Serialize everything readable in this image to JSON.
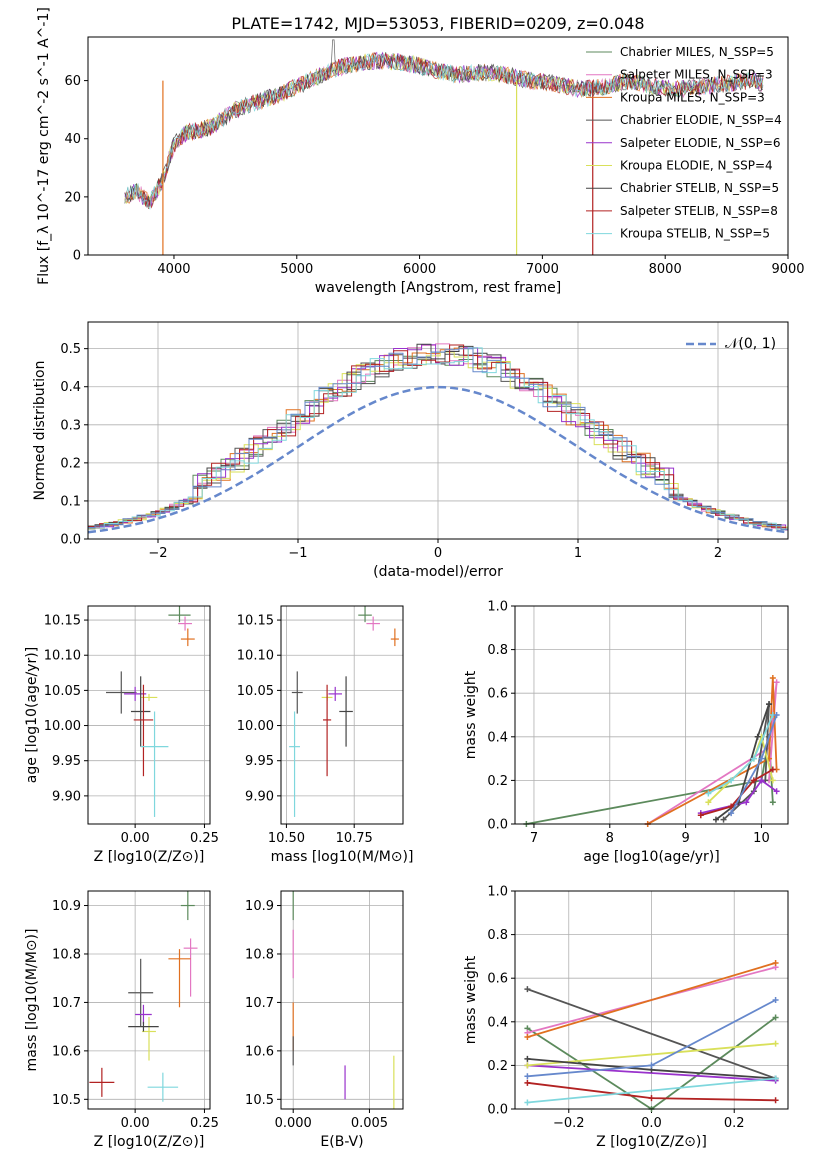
{
  "page_title": "PLATE=1742, MJD=53053, FIBERID=0209, z=0.048",
  "series_colors": [
    "#5c8a5c",
    "#e377c2",
    "#e07020",
    "#555555",
    "#9932cc",
    "#d9e05a",
    "#444444",
    "#b22222",
    "#7fd7dd"
  ],
  "series_colors_lines": [
    "#5c8a5c",
    "#e377c2",
    "#e07020",
    "#555555",
    "#9932cc",
    "#d9e05a",
    "#444444",
    "#b22222",
    "#7fd7dd",
    "#6688cc"
  ],
  "chart_data": [
    {
      "type": "line",
      "xlabel": "wavelength [Angstrom, rest frame]",
      "ylabel": "Flux [f_λ 10^-17 erg cm^-2 s^-1 A^-1]",
      "xlim": [
        3300,
        9000
      ],
      "ylim": [
        0,
        75
      ],
      "xticks": [
        "4000",
        "5000",
        "6000",
        "7000",
        "8000",
        "9000"
      ],
      "yticks": [
        "0",
        "20",
        "40",
        "60"
      ],
      "legend": [
        "Chabrier MILES, N_SSP=5",
        "Salpeter MILES, N_SSP=3",
        "Kroupa MILES, N_SSP=3",
        "Chabrier ELODIE, N_SSP=4",
        "Salpeter ELODIE, N_SSP=6",
        "Kroupa ELODIE, N_SSP=4",
        "Chabrier STELIB, N_SSP=5",
        "Salpeter STELIB, N_SSP=8",
        "Kroupa STELIB, N_SSP=5"
      ],
      "legend_placement": "top-right",
      "spectrum_anchor_points": [
        [
          3600,
          20
        ],
        [
          3700,
          22
        ],
        [
          3800,
          18
        ],
        [
          3900,
          25
        ],
        [
          4000,
          38
        ],
        [
          4100,
          42
        ],
        [
          4300,
          44
        ],
        [
          4500,
          50
        ],
        [
          4700,
          53
        ],
        [
          4900,
          56
        ],
        [
          5100,
          60
        ],
        [
          5300,
          64
        ],
        [
          5500,
          66
        ],
        [
          5700,
          67
        ],
        [
          5900,
          66
        ],
        [
          6100,
          64
        ],
        [
          6300,
          62
        ],
        [
          6500,
          63
        ],
        [
          6700,
          62
        ],
        [
          6900,
          60
        ],
        [
          7100,
          59
        ],
        [
          7300,
          57
        ],
        [
          7500,
          58
        ],
        [
          7700,
          60
        ],
        [
          7900,
          58
        ],
        [
          8100,
          57
        ],
        [
          8300,
          58
        ],
        [
          8500,
          59
        ],
        [
          8700,
          60
        ],
        [
          8800,
          59
        ]
      ]
    },
    {
      "type": "histogram",
      "xlabel": "(data-model)/error",
      "ylabel": "Normed distribution",
      "xlim": [
        -2.5,
        2.5
      ],
      "ylim": [
        0,
        0.57
      ],
      "xticks": [
        "−2",
        "−1",
        "0",
        "1",
        "2"
      ],
      "yticks": [
        "0.0",
        "0.1",
        "0.2",
        "0.3",
        "0.4",
        "0.5"
      ],
      "legend": [
        "𝒩(0, 1)"
      ],
      "legend_placement": "top-right",
      "normal_curve": {
        "mean": 0,
        "sigma": 1
      }
    },
    {
      "type": "scatter",
      "xlabel": "Z [log10(Z/Z⊙)]",
      "ylabel": "age [log10(age/yr)]",
      "xlim": [
        -0.17,
        0.27
      ],
      "ylim": [
        9.86,
        10.17
      ],
      "xticks": [
        "0.00",
        "0.25"
      ],
      "yticks": [
        "9.90",
        "9.95",
        "10.00",
        "10.05",
        "10.10",
        "10.15"
      ],
      "points": [
        [
          0.16,
          10.157,
          0.08,
          0.01,
          0.02
        ],
        [
          0.18,
          10.145,
          0.05,
          0.01,
          0.01
        ],
        [
          0.19,
          10.123,
          0.05,
          0.01,
          0.015
        ],
        [
          -0.05,
          10.047,
          0.11,
          0.03,
          0.03
        ],
        [
          0.0,
          10.045,
          0.08,
          0.01,
          0.01
        ],
        [
          0.05,
          10.04,
          0.06,
          0.005,
          0.005
        ],
        [
          0.02,
          10.02,
          0.07,
          0.05,
          0.05
        ],
        [
          0.03,
          10.008,
          0.07,
          0.08,
          0.05
        ],
        [
          0.07,
          9.97,
          0.1,
          0.1,
          0.05
        ]
      ]
    },
    {
      "type": "scatter",
      "xlabel": "mass [log10(M/M⊙)]",
      "ylabel": "",
      "xlim": [
        10.48,
        10.93
      ],
      "ylim": [
        9.86,
        10.17
      ],
      "xticks": [
        "10.50",
        "10.75"
      ],
      "yticks": [
        "9.90",
        "9.95",
        "10.00",
        "10.05",
        "10.10",
        "10.15"
      ],
      "points": [
        [
          10.79,
          10.157,
          0.05,
          0.01,
          0.02
        ],
        [
          10.82,
          10.145,
          0.05,
          0.01,
          0.01
        ],
        [
          10.9,
          10.123,
          0.03,
          0.01,
          0.015
        ],
        [
          10.54,
          10.047,
          0.04,
          0.03,
          0.03
        ],
        [
          10.68,
          10.045,
          0.05,
          0.01,
          0.01
        ],
        [
          10.65,
          10.04,
          0.04,
          0.005,
          0.005
        ],
        [
          10.72,
          10.02,
          0.05,
          0.05,
          0.05
        ],
        [
          10.65,
          10.008,
          0.03,
          0.08,
          0.05
        ],
        [
          10.53,
          9.97,
          0.04,
          0.1,
          0.05
        ]
      ]
    },
    {
      "type": "line",
      "xlabel": "age [log10(age/yr)]",
      "ylabel": "mass weight",
      "xlim": [
        6.75,
        10.35
      ],
      "ylim": [
        0,
        1.0
      ],
      "xticks": [
        "7",
        "8",
        "9",
        "10"
      ],
      "yticks": [
        "0.0",
        "0.2",
        "0.4",
        "0.6",
        "0.8",
        "1.0"
      ],
      "series": [
        {
          "x": [
            6.9,
            10.0,
            10.1,
            10.15
          ],
          "y": [
            0.0,
            0.2,
            0.4,
            0.1
          ]
        },
        {
          "x": [
            8.5,
            10.1,
            10.2,
            10.1
          ],
          "y": [
            0.0,
            0.35,
            0.65,
            0.2
          ]
        },
        {
          "x": [
            8.5,
            10.1,
            10.15,
            10.2
          ],
          "y": [
            0.0,
            0.3,
            0.67,
            0.25
          ]
        },
        {
          "x": [
            9.5,
            9.9,
            10.1,
            10.05
          ],
          "y": [
            0.02,
            0.15,
            0.55,
            0.2
          ]
        },
        {
          "x": [
            9.2,
            9.8,
            10.0,
            10.2
          ],
          "y": [
            0.05,
            0.1,
            0.2,
            0.15
          ]
        },
        {
          "x": [
            9.3,
            9.9,
            10.0,
            10.15
          ],
          "y": [
            0.1,
            0.3,
            0.4,
            0.2
          ]
        },
        {
          "x": [
            9.4,
            9.7,
            9.95,
            10.1
          ],
          "y": [
            0.02,
            0.1,
            0.4,
            0.55
          ]
        },
        {
          "x": [
            9.2,
            9.6,
            9.9,
            10.15
          ],
          "y": [
            0.04,
            0.08,
            0.2,
            0.25
          ]
        },
        {
          "x": [
            9.3,
            9.6,
            9.9,
            10.15
          ],
          "y": [
            0.14,
            0.2,
            0.3,
            0.5
          ]
        },
        {
          "x": [
            9.6,
            10.0,
            10.2
          ],
          "y": [
            0.05,
            0.3,
            0.5
          ]
        }
      ]
    },
    {
      "type": "scatter",
      "xlabel": "Z [log10(Z/Z⊙)]",
      "ylabel": "mass [log10(M/M⊙)]",
      "xlim": [
        -0.17,
        0.27
      ],
      "ylim": [
        10.48,
        10.93
      ],
      "xticks": [
        "0.00",
        "0.25"
      ],
      "yticks": [
        "10.5",
        "10.6",
        "10.7",
        "10.8",
        "10.9"
      ],
      "points": [
        [
          0.19,
          10.9,
          0.05,
          0.03,
          0.03
        ],
        [
          0.2,
          10.812,
          0.05,
          0.1,
          0.02
        ],
        [
          0.16,
          10.79,
          0.08,
          0.1,
          0.02
        ],
        [
          0.02,
          10.72,
          0.09,
          0.07,
          0.07
        ],
        [
          0.03,
          10.675,
          0.06,
          0.02,
          0.02
        ],
        [
          0.05,
          10.64,
          0.05,
          0.06,
          0.03
        ],
        [
          0.03,
          10.65,
          0.11,
          0.01,
          0.01
        ],
        [
          -0.12,
          10.535,
          0.09,
          0.03,
          0.03
        ],
        [
          0.1,
          10.525,
          0.11,
          0.03,
          0.03
        ]
      ]
    },
    {
      "type": "scatter",
      "xlabel": "E(B-V)",
      "ylabel": "",
      "xlim": [
        -0.0008,
        0.0072
      ],
      "ylim": [
        10.48,
        10.93
      ],
      "xticks": [
        "0.000",
        "0.005"
      ],
      "yticks": [
        "10.5",
        "10.6",
        "10.7",
        "10.8",
        "10.9"
      ],
      "points": [
        [
          0.0,
          10.9,
          0,
          0.03,
          0.03
        ],
        [
          0.0,
          10.8,
          0,
          0.05,
          0.05
        ],
        [
          0.0,
          10.65,
          0,
          0.05,
          0.05
        ],
        [
          0.0,
          10.6,
          0,
          0.03,
          0.03
        ],
        [
          0.0034,
          10.535,
          0,
          0.035,
          0.035
        ],
        [
          0.0066,
          10.525,
          0,
          0.065,
          0.065
        ]
      ]
    },
    {
      "type": "line",
      "xlabel": "Z [log10(Z/Z⊙)]",
      "ylabel": "mass weight",
      "xlim": [
        -0.33,
        0.33
      ],
      "ylim": [
        0,
        1.0
      ],
      "xticks": [
        "−0.2",
        "0.0",
        "0.2"
      ],
      "yticks": [
        "0.0",
        "0.2",
        "0.4",
        "0.6",
        "0.8",
        "1.0"
      ],
      "series": [
        {
          "x": [
            -0.3,
            0.0,
            0.3
          ],
          "y": [
            0.37,
            0.0,
            0.42
          ]
        },
        {
          "x": [
            -0.3,
            0.3
          ],
          "y": [
            0.35,
            0.65
          ]
        },
        {
          "x": [
            -0.3,
            0.3
          ],
          "y": [
            0.33,
            0.67
          ]
        },
        {
          "x": [
            -0.3,
            0.3
          ],
          "y": [
            0.55,
            0.14
          ]
        },
        {
          "x": [
            -0.3,
            0.3
          ],
          "y": [
            0.2,
            0.13
          ]
        },
        {
          "x": [
            -0.3,
            0.3
          ],
          "y": [
            0.2,
            0.3
          ]
        },
        {
          "x": [
            -0.3,
            0.0,
            0.3
          ],
          "y": [
            0.23,
            0.18,
            0.14
          ]
        },
        {
          "x": [
            -0.3,
            0.0,
            0.3
          ],
          "y": [
            0.12,
            0.05,
            0.04
          ]
        },
        {
          "x": [
            -0.3,
            0.3
          ],
          "y": [
            0.03,
            0.14
          ]
        },
        {
          "x": [
            -0.3,
            0.0,
            0.3
          ],
          "y": [
            0.15,
            0.2,
            0.5
          ]
        }
      ]
    }
  ]
}
